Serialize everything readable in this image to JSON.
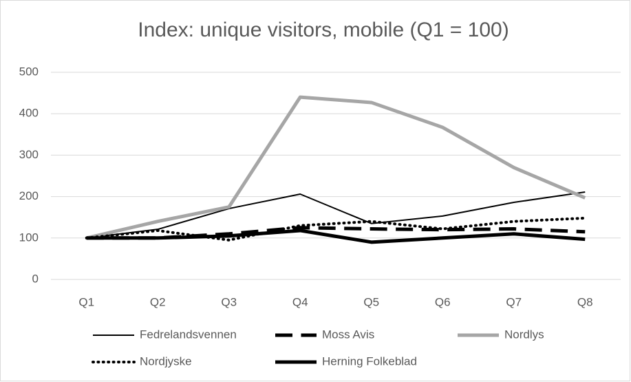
{
  "chart_data": {
    "type": "line",
    "title": "Index: unique visitors, mobile (Q1 = 100)",
    "categories": [
      "Q1",
      "Q2",
      "Q3",
      "Q4",
      "Q5",
      "Q6",
      "Q7",
      "Q8"
    ],
    "series": [
      {
        "name": "Fedrelandsvennen",
        "color": "#000000",
        "line_width": 2,
        "line_style": "solid",
        "values": [
          100,
          121,
          171,
          206,
          135,
          153,
          186,
          211
        ]
      },
      {
        "name": "Moss Avis",
        "color": "#000000",
        "line_width": 5,
        "line_style": "dashed",
        "values": [
          100,
          100,
          110,
          125,
          122,
          120,
          122,
          115
        ]
      },
      {
        "name": "Nordlys",
        "color": "#a6a6a6",
        "line_width": 5,
        "line_style": "solid",
        "values": [
          100,
          140,
          175,
          440,
          427,
          367,
          270,
          197
        ]
      },
      {
        "name": "Nordjyske",
        "color": "#000000",
        "line_width": 4,
        "line_style": "dotted",
        "values": [
          100,
          118,
          95,
          130,
          140,
          122,
          140,
          148
        ]
      },
      {
        "name": "Herning Folkeblad",
        "color": "#000000",
        "line_width": 5,
        "line_style": "solid",
        "values": [
          100,
          100,
          105,
          118,
          90,
          100,
          110,
          97
        ]
      }
    ],
    "ylim": [
      0,
      500
    ],
    "yticks": [
      0,
      100,
      200,
      300,
      400,
      500
    ],
    "grid": true,
    "legend": "bottom"
  }
}
